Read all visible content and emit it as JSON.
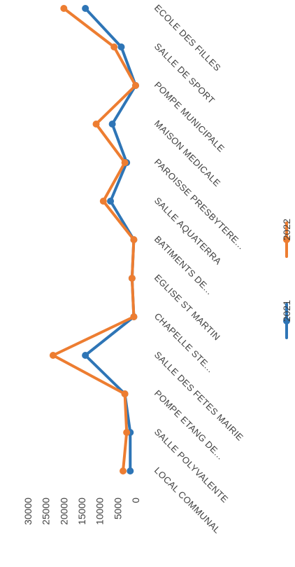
{
  "chart_data": {
    "type": "line",
    "categories": [
      "LOCAL COMMUNAL",
      "SALLE POLYVALENTE",
      "POMPE ETANG DE...",
      "SALLE DES FETES MAIRIE",
      "CHAPELLE STE...",
      "EGLISE ST MARTIN",
      "BATIMENTS DE...",
      "SALLE AQUATERRA",
      "PAROISSE PRESBYTERE...",
      "MAISON MEDICALE",
      "POMPE MUNICIPALE",
      "SALLE DE SPORT",
      "ECOLE DES FILLES"
    ],
    "series": [
      {
        "name": "2021",
        "color": "#2E75B6",
        "values": [
          1500,
          1500,
          3000,
          14000,
          500,
          1000,
          500,
          7000,
          2500,
          6500,
          0,
          4000,
          14000
        ]
      },
      {
        "name": "2022",
        "color": "#ED7D31",
        "values": [
          3500,
          2500,
          3000,
          23000,
          500,
          1000,
          500,
          9000,
          3000,
          11000,
          0,
          6000,
          20000
        ]
      }
    ],
    "yticks": [
      "0",
      "5000",
      "10000",
      "15000",
      "20000",
      "25000",
      "30000"
    ],
    "ylim": [
      0,
      30000
    ],
    "title": "",
    "xlabel": "",
    "ylabel": "",
    "grid": false,
    "legend_position": "bottom",
    "orientation": "rotated-90-clockwise"
  }
}
